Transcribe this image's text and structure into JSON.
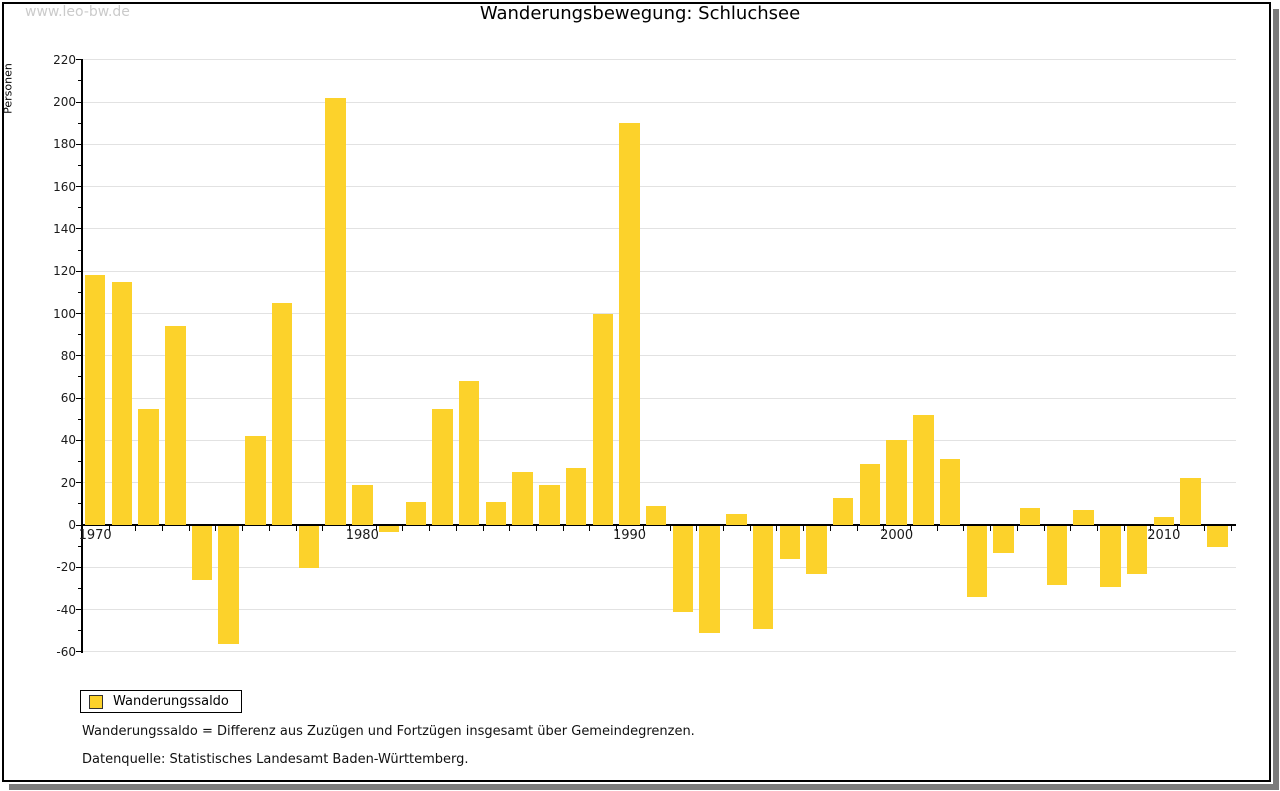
{
  "watermark": "www.leo-bw.de",
  "title": "Wanderungsbewegung: Schluchsee",
  "y_axis_label": "Personen",
  "legend": {
    "label": "Wanderungssaldo"
  },
  "footnotes": {
    "definition": "Wanderungssaldo = Differenz aus Zuzügen und Fortzügen insgesamt über Gemeindegrenzen.",
    "source": "Datenquelle: Statistisches Landesamt Baden-Württemberg."
  },
  "colors": {
    "bar": "#FCD22B",
    "gridline": "#e2e2e2",
    "axis": "#000000",
    "watermark": "#cbcbcb",
    "shadow": "#7b7b7b"
  },
  "chart_data": {
    "type": "bar",
    "title": "Wanderungsbewegung: Schluchsee",
    "xlabel": "",
    "ylabel": "Personen",
    "series_name": "Wanderungssaldo",
    "x": [
      1970,
      1971,
      1972,
      1973,
      1974,
      1975,
      1976,
      1977,
      1978,
      1979,
      1980,
      1981,
      1982,
      1983,
      1984,
      1985,
      1986,
      1987,
      1988,
      1989,
      1990,
      1991,
      1992,
      1993,
      1994,
      1995,
      1996,
      1997,
      1998,
      1999,
      2000,
      2001,
      2002,
      2003,
      2004,
      2005,
      2006,
      2007,
      2008,
      2009,
      2010,
      2011,
      2012
    ],
    "values": [
      118,
      115,
      55,
      94,
      -26,
      -56,
      42,
      105,
      -20,
      202,
      19,
      -3,
      11,
      55,
      68,
      11,
      25,
      19,
      27,
      100,
      190,
      9,
      -41,
      -51,
      5,
      -49,
      -16,
      -23,
      13,
      29,
      40,
      52,
      31,
      -34,
      -13,
      8,
      -28,
      7,
      -29,
      -23,
      4,
      22,
      -10
    ],
    "ylim": [
      -60,
      220
    ],
    "ytick_step": 20,
    "ytick_minor_step": 10,
    "ytick_labels": [
      "-60",
      "-40",
      "-20",
      "0",
      "20",
      "40",
      "60",
      "80",
      "100",
      "120",
      "140",
      "160",
      "180",
      "200",
      "220"
    ],
    "xtick_labels": [
      "1970",
      "1980",
      "1990",
      "2000",
      "2010"
    ],
    "grid": "horizontal",
    "legend_position": "bottom-left"
  }
}
